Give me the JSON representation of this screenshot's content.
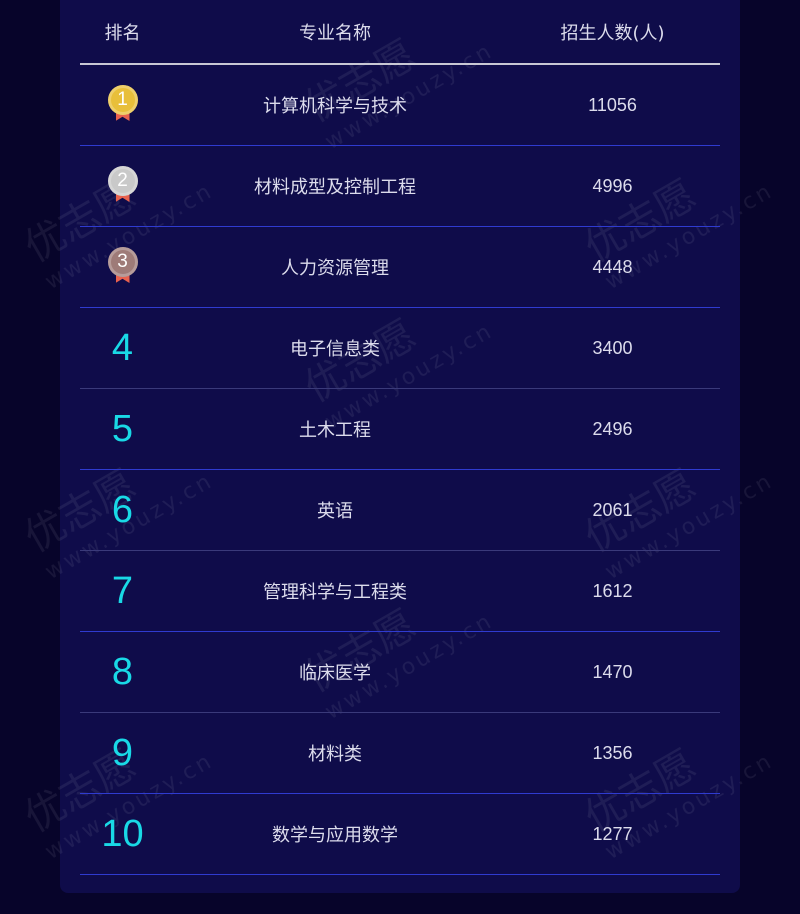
{
  "table": {
    "headers": [
      "排名",
      "专业名称",
      "招生人数(人)"
    ],
    "rows": [
      {
        "rank": "1",
        "name": "计算机科学与技术",
        "count": "11056",
        "medal": "gold",
        "medal_color": "#e8bf3a"
      },
      {
        "rank": "2",
        "name": "材料成型及控制工程",
        "count": "4996",
        "medal": "silver",
        "medal_color": "#c9c9c9"
      },
      {
        "rank": "3",
        "name": "人力资源管理",
        "count": "4448",
        "medal": "bronze",
        "medal_color": "#9e7b78"
      },
      {
        "rank": "4",
        "name": "电子信息类",
        "count": "3400"
      },
      {
        "rank": "5",
        "name": "土木工程",
        "count": "2496"
      },
      {
        "rank": "6",
        "name": "英语",
        "count": "2061"
      },
      {
        "rank": "7",
        "name": "管理科学与工程类",
        "count": "1612"
      },
      {
        "rank": "8",
        "name": "临床医学",
        "count": "1470"
      },
      {
        "rank": "9",
        "name": "材料类",
        "count": "1356"
      },
      {
        "rank": "10",
        "name": "数学与应用数学",
        "count": "1277"
      }
    ]
  },
  "watermark": {
    "brand": "优志愿",
    "url": "www.youzy.cn"
  },
  "colors": {
    "background": "#07042a",
    "card": "#0f0c4a",
    "rank_accent": "#19d9e6",
    "row_divider": "#2f3bd0"
  }
}
